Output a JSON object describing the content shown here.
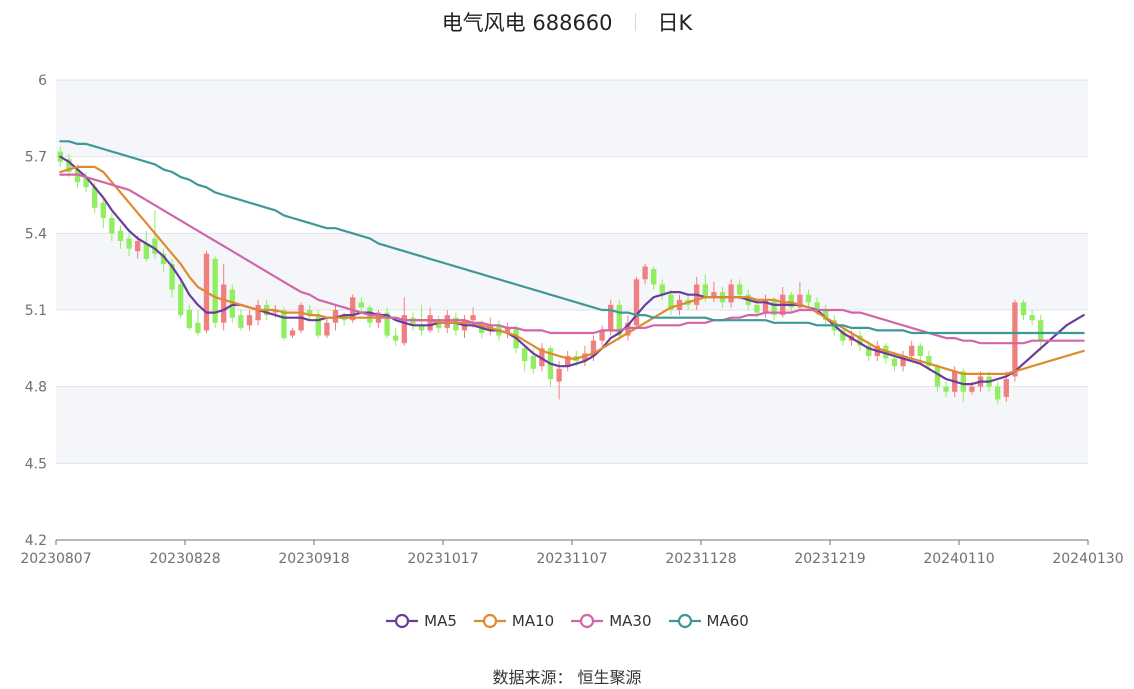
{
  "title": {
    "name": "电气风电 688660",
    "period": "日K"
  },
  "source": "数据来源： 恒生聚源",
  "colors": {
    "up": "#f08080",
    "down": "#90ee60",
    "MA5": "#6a3d9a",
    "MA10": "#e08a30",
    "MA30": "#d266a8",
    "MA60": "#3f9898",
    "band": "#f5f6fa",
    "grid": "#e0e3ec",
    "axis": "#6e7079"
  },
  "chart_data": {
    "type": "candlestick",
    "title": "电气风电 688660 日K",
    "ylim": [
      4.2,
      6.0
    ],
    "y_ticks": [
      "6",
      "5.7",
      "5.4",
      "5.1",
      "4.8",
      "4.5",
      "4.2"
    ],
    "x_ticks": [
      "20230807",
      "20230828",
      "20230918",
      "20231017",
      "20231107",
      "20231128",
      "20231219",
      "20240110",
      "20240130"
    ],
    "legend": [
      "MA5",
      "MA10",
      "MA30",
      "MA60"
    ],
    "legend_position": "bottom",
    "dates": [
      "20230807",
      "20230808",
      "20230809",
      "20230810",
      "20230811",
      "20230814",
      "20230815",
      "20230816",
      "20230817",
      "20230818",
      "20230821",
      "20230822",
      "20230823",
      "20230824",
      "20230825",
      "20230828",
      "20230829",
      "20230830",
      "20230831",
      "20230901",
      "20230904",
      "20230905",
      "20230906",
      "20230907",
      "20230908",
      "20230911",
      "20230912",
      "20230913",
      "20230914",
      "20230915",
      "20230918",
      "20230919",
      "20230920",
      "20230921",
      "20230922",
      "20230925",
      "20230926",
      "20230927",
      "20230928",
      "20231009",
      "20231010",
      "20231011",
      "20231012",
      "20231013",
      "20231016",
      "20231017",
      "20231018",
      "20231019",
      "20231020",
      "20231023",
      "20231024",
      "20231025",
      "20231026",
      "20231027",
      "20231030",
      "20231031",
      "20231101",
      "20231102",
      "20231103",
      "20231106",
      "20231107",
      "20231108",
      "20231109",
      "20231110",
      "20231113",
      "20231114",
      "20231115",
      "20231116",
      "20231117",
      "20231120",
      "20231121",
      "20231122",
      "20231123",
      "20231124",
      "20231127",
      "20231128",
      "20231129",
      "20231130",
      "20231201",
      "20231204",
      "20231205",
      "20231206",
      "20231207",
      "20231208",
      "20231211",
      "20231212",
      "20231213",
      "20231214",
      "20231215",
      "20231218",
      "20231219",
      "20231220",
      "20231221",
      "20231222",
      "20231225",
      "20231226",
      "20231227",
      "20231228",
      "20231229",
      "20240102",
      "20240103",
      "20240104",
      "20240105",
      "20240108",
      "20240109",
      "20240110",
      "20240111",
      "20240112",
      "20240115",
      "20240116",
      "20240117",
      "20240118",
      "20240119",
      "20240122",
      "20240123",
      "20240124",
      "20240125",
      "20240126",
      "20240129",
      "20240130"
    ],
    "candles": [
      [
        5.72,
        5.68,
        5.66,
        5.74
      ],
      [
        5.69,
        5.64,
        5.62,
        5.71
      ],
      [
        5.65,
        5.6,
        5.58,
        5.67
      ],
      [
        5.62,
        5.58,
        5.56,
        5.64
      ],
      [
        5.58,
        5.5,
        5.48,
        5.6
      ],
      [
        5.52,
        5.46,
        5.42,
        5.54
      ],
      [
        5.46,
        5.4,
        5.37,
        5.48
      ],
      [
        5.41,
        5.37,
        5.34,
        5.43
      ],
      [
        5.38,
        5.34,
        5.31,
        5.4
      ],
      [
        5.33,
        5.37,
        5.3,
        5.39
      ],
      [
        5.36,
        5.3,
        5.29,
        5.41
      ],
      [
        5.38,
        5.32,
        5.3,
        5.49
      ],
      [
        5.32,
        5.28,
        5.25,
        5.34
      ],
      [
        5.28,
        5.18,
        5.15,
        5.3
      ],
      [
        5.2,
        5.08,
        5.07,
        5.22
      ],
      [
        5.1,
        5.03,
        5.02,
        5.12
      ],
      [
        5.05,
        5.01,
        5.0,
        5.1
      ],
      [
        5.02,
        5.32,
        5.01,
        5.33
      ],
      [
        5.3,
        5.05,
        5.03,
        5.31
      ],
      [
        5.05,
        5.2,
        5.02,
        5.28
      ],
      [
        5.18,
        5.07,
        5.05,
        5.2
      ],
      [
        5.08,
        5.03,
        5.02,
        5.1
      ],
      [
        5.04,
        5.08,
        5.02,
        5.1
      ],
      [
        5.06,
        5.12,
        5.04,
        5.14
      ],
      [
        5.12,
        5.08,
        5.06,
        5.14
      ],
      [
        5.09,
        5.1,
        5.07,
        5.12
      ],
      [
        5.1,
        4.99,
        4.98,
        5.11
      ],
      [
        5.0,
        5.02,
        4.99,
        5.03
      ],
      [
        5.02,
        5.12,
        5.01,
        5.13
      ],
      [
        5.1,
        5.08,
        5.06,
        5.12
      ],
      [
        5.08,
        5.0,
        4.99,
        5.1
      ],
      [
        5.0,
        5.05,
        4.99,
        5.07
      ],
      [
        5.05,
        5.1,
        5.02,
        5.12
      ],
      [
        5.08,
        5.06,
        5.04,
        5.09
      ],
      [
        5.06,
        5.15,
        5.05,
        5.16
      ],
      [
        5.13,
        5.11,
        5.09,
        5.15
      ],
      [
        5.11,
        5.05,
        5.03,
        5.12
      ],
      [
        5.05,
        5.09,
        5.03,
        5.1
      ],
      [
        5.09,
        5.0,
        4.99,
        5.11
      ],
      [
        5.0,
        4.98,
        4.96,
        5.03
      ],
      [
        4.97,
        5.08,
        4.96,
        5.15
      ],
      [
        5.07,
        5.04,
        5.02,
        5.09
      ],
      [
        5.04,
        5.02,
        5.0,
        5.12
      ],
      [
        5.02,
        5.08,
        5.01,
        5.11
      ],
      [
        5.06,
        5.03,
        5.01,
        5.08
      ],
      [
        5.03,
        5.08,
        5.01,
        5.1
      ],
      [
        5.07,
        5.02,
        5.0,
        5.09
      ],
      [
        5.02,
        5.06,
        4.99,
        5.08
      ],
      [
        5.06,
        5.08,
        5.03,
        5.11
      ],
      [
        5.04,
        5.01,
        4.99,
        5.06
      ],
      [
        5.02,
        5.04,
        5.0,
        5.07
      ],
      [
        5.04,
        5.0,
        4.98,
        5.06
      ],
      [
        5.01,
        5.03,
        4.99,
        5.05
      ],
      [
        5.03,
        4.95,
        4.93,
        5.04
      ],
      [
        4.95,
        4.9,
        4.86,
        4.96
      ],
      [
        4.92,
        4.87,
        4.85,
        4.95
      ],
      [
        4.88,
        4.95,
        4.86,
        4.97
      ],
      [
        4.95,
        4.83,
        4.8,
        4.96
      ],
      [
        4.82,
        4.87,
        4.75,
        4.9
      ],
      [
        4.88,
        4.92,
        4.86,
        4.94
      ],
      [
        4.92,
        4.9,
        4.88,
        4.94
      ],
      [
        4.9,
        4.93,
        4.88,
        4.96
      ],
      [
        4.92,
        4.98,
        4.9,
        5.0
      ],
      [
        4.98,
        5.02,
        4.96,
        5.04
      ],
      [
        5.02,
        5.12,
        5.0,
        5.14
      ],
      [
        5.12,
        5.0,
        4.98,
        5.14
      ],
      [
        5.0,
        5.05,
        4.98,
        5.08
      ],
      [
        5.04,
        5.22,
        5.03,
        5.23
      ],
      [
        5.22,
        5.27,
        5.2,
        5.28
      ],
      [
        5.26,
        5.2,
        5.18,
        5.27
      ],
      [
        5.2,
        5.16,
        5.14,
        5.22
      ],
      [
        5.16,
        5.1,
        5.08,
        5.18
      ],
      [
        5.1,
        5.14,
        5.08,
        5.16
      ],
      [
        5.14,
        5.12,
        5.1,
        5.16
      ],
      [
        5.12,
        5.2,
        5.1,
        5.23
      ],
      [
        5.2,
        5.15,
        5.13,
        5.24
      ],
      [
        5.15,
        5.17,
        5.13,
        5.21
      ],
      [
        5.17,
        5.13,
        5.11,
        5.19
      ],
      [
        5.13,
        5.2,
        5.11,
        5.22
      ],
      [
        5.2,
        5.16,
        5.14,
        5.22
      ],
      [
        5.16,
        5.12,
        5.1,
        5.18
      ],
      [
        5.12,
        5.09,
        5.07,
        5.14
      ],
      [
        5.09,
        5.14,
        5.07,
        5.16
      ],
      [
        5.14,
        5.08,
        5.06,
        5.15
      ],
      [
        5.08,
        5.16,
        5.07,
        5.19
      ],
      [
        5.16,
        5.11,
        5.09,
        5.17
      ],
      [
        5.11,
        5.16,
        5.1,
        5.21
      ],
      [
        5.16,
        5.13,
        5.11,
        5.18
      ],
      [
        5.13,
        5.1,
        5.08,
        5.15
      ],
      [
        5.1,
        5.06,
        5.04,
        5.12
      ],
      [
        5.06,
        5.02,
        5.0,
        5.08
      ],
      [
        5.02,
        4.98,
        4.96,
        5.04
      ],
      [
        4.98,
        5.0,
        4.96,
        5.02
      ],
      [
        5.0,
        4.96,
        4.94,
        5.02
      ],
      [
        4.96,
        4.92,
        4.9,
        4.98
      ],
      [
        4.92,
        4.96,
        4.9,
        4.98
      ],
      [
        4.96,
        4.91,
        4.89,
        4.97
      ],
      [
        4.91,
        4.88,
        4.86,
        4.93
      ],
      [
        4.88,
        4.92,
        4.86,
        4.94
      ],
      [
        4.92,
        4.96,
        4.9,
        4.98
      ],
      [
        4.96,
        4.92,
        4.9,
        4.97
      ],
      [
        4.92,
        4.88,
        4.86,
        4.94
      ],
      [
        4.88,
        4.8,
        4.78,
        4.89
      ],
      [
        4.8,
        4.78,
        4.76,
        4.82
      ],
      [
        4.78,
        4.86,
        4.76,
        4.88
      ],
      [
        4.86,
        4.78,
        4.74,
        4.87
      ],
      [
        4.78,
        4.8,
        4.77,
        4.82
      ],
      [
        4.8,
        4.84,
        4.78,
        4.86
      ],
      [
        4.84,
        4.8,
        4.78,
        4.86
      ],
      [
        4.8,
        4.75,
        4.73,
        4.82
      ],
      [
        4.76,
        4.83,
        4.74,
        4.86
      ],
      [
        4.84,
        5.13,
        4.82,
        5.14
      ],
      [
        5.13,
        5.08,
        5.06,
        5.14
      ],
      [
        5.08,
        5.06,
        5.04,
        5.1
      ],
      [
        5.06,
        4.98,
        4.94,
        5.08
      ]
    ],
    "series": [
      {
        "name": "MA5",
        "values": [
          5.7,
          5.68,
          5.65,
          5.62,
          5.58,
          5.54,
          5.49,
          5.45,
          5.41,
          5.38,
          5.36,
          5.34,
          5.31,
          5.27,
          5.22,
          5.16,
          5.12,
          5.09,
          5.09,
          5.1,
          5.12,
          5.12,
          5.11,
          5.1,
          5.09,
          5.08,
          5.07,
          5.07,
          5.07,
          5.06,
          5.06,
          5.07,
          5.07,
          5.08,
          5.08,
          5.09,
          5.09,
          5.08,
          5.08,
          5.06,
          5.05,
          5.04,
          5.04,
          5.04,
          5.05,
          5.05,
          5.05,
          5.04,
          5.04,
          5.03,
          5.02,
          5.02,
          5.01,
          4.99,
          4.96,
          4.93,
          4.91,
          4.89,
          4.88,
          4.88,
          4.89,
          4.9,
          4.92,
          4.95,
          4.99,
          5.01,
          5.04,
          5.08,
          5.12,
          5.15,
          5.16,
          5.17,
          5.17,
          5.16,
          5.16,
          5.15,
          5.15,
          5.15,
          5.15,
          5.15,
          5.14,
          5.13,
          5.13,
          5.12,
          5.12,
          5.12,
          5.12,
          5.11,
          5.1,
          5.07,
          5.04,
          5.01,
          4.99,
          4.97,
          4.95,
          4.94,
          4.93,
          4.92,
          4.91,
          4.9,
          4.89,
          4.87,
          4.85,
          4.83,
          4.82,
          4.81,
          4.81,
          4.82,
          4.82,
          4.83,
          4.84,
          4.86,
          4.89,
          4.92,
          4.95,
          4.98,
          5.01,
          5.04,
          5.06,
          5.08
        ]
      },
      {
        "name": "MA10",
        "values": [
          5.64,
          5.65,
          5.66,
          5.66,
          5.66,
          5.64,
          5.6,
          5.56,
          5.52,
          5.48,
          5.44,
          5.4,
          5.36,
          5.32,
          5.28,
          5.23,
          5.19,
          5.17,
          5.15,
          5.14,
          5.13,
          5.12,
          5.11,
          5.1,
          5.1,
          5.1,
          5.09,
          5.09,
          5.09,
          5.08,
          5.08,
          5.07,
          5.07,
          5.07,
          5.07,
          5.07,
          5.07,
          5.07,
          5.07,
          5.07,
          5.06,
          5.06,
          5.06,
          5.06,
          5.05,
          5.05,
          5.05,
          5.05,
          5.05,
          5.04,
          5.03,
          5.02,
          5.01,
          5.0,
          4.98,
          4.96,
          4.94,
          4.93,
          4.92,
          4.91,
          4.91,
          4.92,
          4.93,
          4.95,
          4.97,
          4.99,
          5.01,
          5.03,
          5.05,
          5.07,
          5.09,
          5.11,
          5.12,
          5.13,
          5.14,
          5.15,
          5.15,
          5.15,
          5.15,
          5.15,
          5.15,
          5.14,
          5.14,
          5.14,
          5.13,
          5.13,
          5.12,
          5.11,
          5.09,
          5.07,
          5.05,
          5.03,
          5.01,
          4.99,
          4.97,
          4.95,
          4.94,
          4.93,
          4.92,
          4.91,
          4.9,
          4.89,
          4.88,
          4.87,
          4.86,
          4.85,
          4.85,
          4.85,
          4.85,
          4.85,
          4.85,
          4.86,
          4.87,
          4.88,
          4.89,
          4.9,
          4.91,
          4.92,
          4.93,
          4.94
        ]
      },
      {
        "name": "MA30",
        "values": [
          5.63,
          5.63,
          5.63,
          5.62,
          5.61,
          5.6,
          5.59,
          5.58,
          5.57,
          5.55,
          5.53,
          5.51,
          5.49,
          5.47,
          5.45,
          5.43,
          5.41,
          5.39,
          5.37,
          5.35,
          5.33,
          5.31,
          5.29,
          5.27,
          5.25,
          5.23,
          5.21,
          5.19,
          5.17,
          5.16,
          5.14,
          5.13,
          5.12,
          5.11,
          5.1,
          5.09,
          5.08,
          5.08,
          5.07,
          5.07,
          5.06,
          5.06,
          5.06,
          5.06,
          5.06,
          5.06,
          5.06,
          5.06,
          5.05,
          5.05,
          5.04,
          5.04,
          5.03,
          5.03,
          5.02,
          5.02,
          5.02,
          5.01,
          5.01,
          5.01,
          5.01,
          5.01,
          5.01,
          5.02,
          5.02,
          5.02,
          5.03,
          5.03,
          5.03,
          5.04,
          5.04,
          5.04,
          5.04,
          5.05,
          5.05,
          5.05,
          5.06,
          5.06,
          5.07,
          5.07,
          5.08,
          5.08,
          5.09,
          5.09,
          5.09,
          5.09,
          5.1,
          5.1,
          5.1,
          5.1,
          5.1,
          5.1,
          5.09,
          5.09,
          5.08,
          5.07,
          5.06,
          5.05,
          5.04,
          5.03,
          5.02,
          5.01,
          5.0,
          4.99,
          4.99,
          4.98,
          4.98,
          4.97,
          4.97,
          4.97,
          4.97,
          4.97,
          4.97,
          4.98,
          4.98,
          4.98,
          4.98,
          4.98,
          4.98,
          4.98
        ]
      },
      {
        "name": "MA60",
        "values": [
          5.76,
          5.76,
          5.75,
          5.75,
          5.74,
          5.73,
          5.72,
          5.71,
          5.7,
          5.69,
          5.68,
          5.67,
          5.65,
          5.64,
          5.62,
          5.61,
          5.59,
          5.58,
          5.56,
          5.55,
          5.54,
          5.53,
          5.52,
          5.51,
          5.5,
          5.49,
          5.47,
          5.46,
          5.45,
          5.44,
          5.43,
          5.42,
          5.42,
          5.41,
          5.4,
          5.39,
          5.38,
          5.36,
          5.35,
          5.34,
          5.33,
          5.32,
          5.31,
          5.3,
          5.29,
          5.28,
          5.27,
          5.26,
          5.25,
          5.24,
          5.23,
          5.22,
          5.21,
          5.2,
          5.19,
          5.18,
          5.17,
          5.16,
          5.15,
          5.14,
          5.13,
          5.12,
          5.11,
          5.1,
          5.1,
          5.09,
          5.09,
          5.08,
          5.08,
          5.07,
          5.07,
          5.07,
          5.07,
          5.07,
          5.07,
          5.07,
          5.06,
          5.06,
          5.06,
          5.06,
          5.06,
          5.06,
          5.06,
          5.05,
          5.05,
          5.05,
          5.05,
          5.05,
          5.04,
          5.04,
          5.04,
          5.04,
          5.03,
          5.03,
          5.03,
          5.02,
          5.02,
          5.02,
          5.02,
          5.01,
          5.01,
          5.01,
          5.01,
          5.01,
          5.01,
          5.01,
          5.01,
          5.01,
          5.01,
          5.01,
          5.01,
          5.01,
          5.01,
          5.01,
          5.01,
          5.01,
          5.01,
          5.01,
          5.01,
          5.01
        ]
      }
    ]
  }
}
